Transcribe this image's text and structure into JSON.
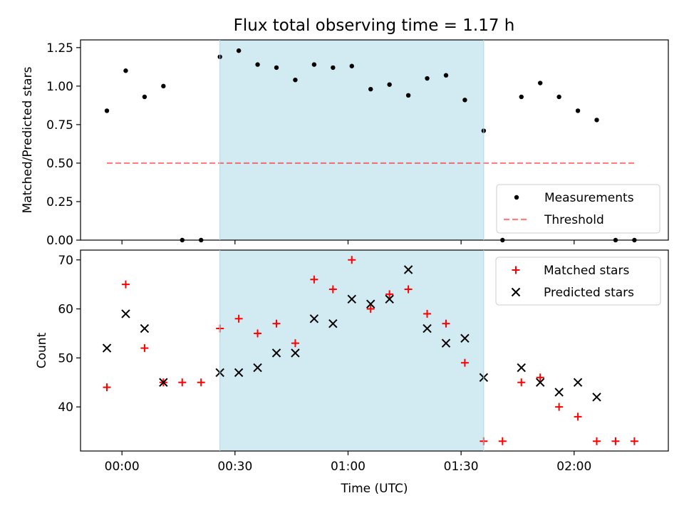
{
  "title": "Flux total observing time = 1.17 h",
  "colors": {
    "shade": "#add8e6",
    "measurement": "#000000",
    "threshold": "#ff0000",
    "matched": "#ff0000",
    "predicted": "#000000"
  },
  "chart_data": [
    {
      "type": "scatter",
      "ylabel": "Matched/Predicted stars",
      "ylim": [
        0,
        1.3
      ],
      "yticks": [
        0,
        0.25,
        0.5,
        0.75,
        1.0,
        1.25
      ],
      "ytick_labels": [
        "0.00",
        "0.25",
        "0.50",
        "0.75",
        "1.00",
        "1.25"
      ],
      "xlim_minutes": [
        -11,
        145
      ],
      "shaded_range_minutes": [
        26,
        96
      ],
      "legend_position": "lower-right",
      "series": [
        {
          "name": "Measurements",
          "marker": "dot",
          "x_minutes": [
            -4,
            1,
            6,
            11,
            16,
            21,
            26,
            31,
            36,
            41,
            46,
            51,
            56,
            61,
            66,
            71,
            76,
            81,
            86,
            91,
            96,
            101,
            106,
            111,
            116,
            121,
            126,
            131,
            136
          ],
          "y": [
            0.84,
            1.1,
            0.93,
            1.0,
            0.0,
            0.0,
            1.19,
            1.23,
            1.14,
            1.12,
            1.04,
            1.14,
            1.12,
            1.13,
            0.98,
            1.01,
            0.94,
            1.05,
            1.07,
            0.91,
            0.71,
            0.0,
            0.93,
            1.02,
            0.93,
            0.84,
            0.78,
            0.0,
            0.0
          ]
        },
        {
          "name": "Threshold",
          "marker": "dashed-line",
          "x_minutes": [
            -4,
            136
          ],
          "y": [
            0.5,
            0.5
          ]
        }
      ]
    },
    {
      "type": "scatter",
      "xlabel": "Time (UTC)",
      "ylabel": "Count",
      "ylim": [
        31,
        72
      ],
      "yticks": [
        40,
        50,
        60,
        70
      ],
      "ytick_labels": [
        "40",
        "50",
        "60",
        "70"
      ],
      "xlim_minutes": [
        -11,
        145
      ],
      "xticks_minutes": [
        0,
        30,
        60,
        90,
        120
      ],
      "xtick_labels": [
        "00:00",
        "00:30",
        "01:00",
        "01:30",
        "02:00"
      ],
      "shaded_range_minutes": [
        26,
        96
      ],
      "legend_position": "upper-right",
      "series": [
        {
          "name": "Matched stars",
          "marker": "plus",
          "x_minutes": [
            -4,
            1,
            6,
            11,
            16,
            21,
            26,
            31,
            36,
            41,
            46,
            51,
            56,
            61,
            66,
            71,
            76,
            81,
            86,
            91,
            96,
            101,
            106,
            111,
            116,
            121,
            126,
            131,
            136
          ],
          "y": [
            44,
            65,
            52,
            45,
            45,
            45,
            56,
            58,
            55,
            57,
            53,
            66,
            64,
            70,
            60,
            63,
            64,
            59,
            57,
            49,
            33,
            33,
            45,
            46,
            40,
            38,
            33,
            33,
            33
          ]
        },
        {
          "name": "Predicted stars",
          "marker": "x",
          "x_minutes": [
            -4,
            1,
            6,
            11,
            26,
            31,
            36,
            41,
            46,
            51,
            56,
            61,
            66,
            71,
            76,
            81,
            86,
            91,
            96,
            106,
            111,
            116,
            121,
            126
          ],
          "y": [
            52,
            59,
            56,
            45,
            47,
            47,
            48,
            51,
            51,
            58,
            57,
            62,
            61,
            62,
            68,
            56,
            53,
            54,
            46,
            48,
            45,
            43,
            45,
            42
          ]
        }
      ]
    }
  ]
}
